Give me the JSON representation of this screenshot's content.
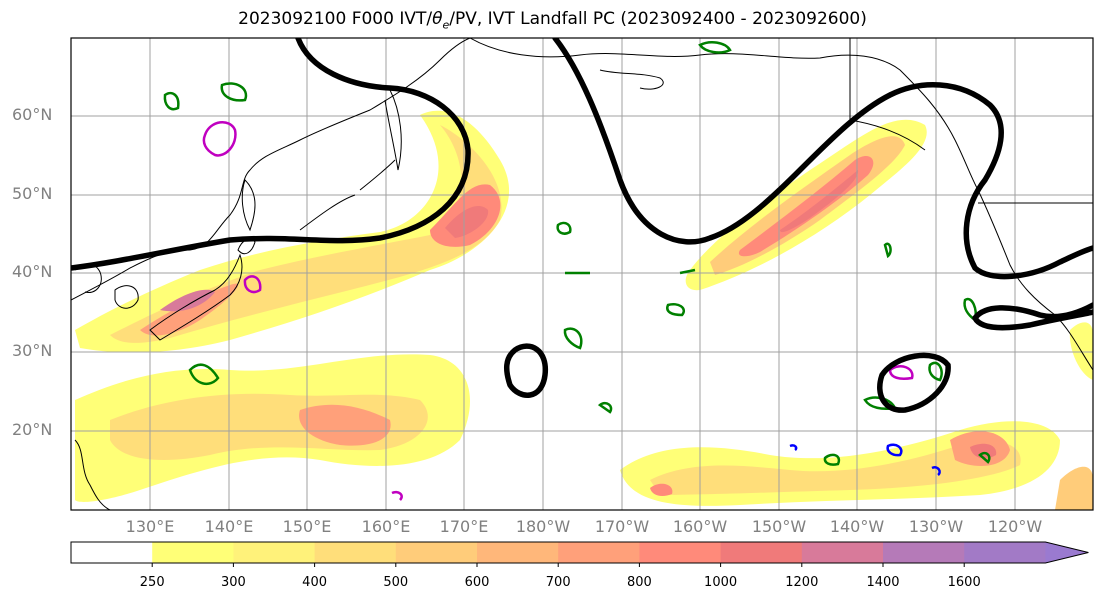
{
  "title": {
    "prefix": "2023092100 F000 IVT/",
    "theta": "θ",
    "sub": "e",
    "suffix": "/PV, IVT Landfall PC (2023092400 - 2023092600)"
  },
  "map": {
    "lon_range": [
      120,
      250
    ],
    "lat_range": [
      10,
      70
    ],
    "lat_labels": [
      "20°N",
      "30°N",
      "40°N",
      "50°N",
      "60°N"
    ],
    "lon_labels": [
      "130°E",
      "140°E",
      "150°E",
      "160°E",
      "170°E",
      "180°W",
      "170°W",
      "160°W",
      "150°W",
      "140°W",
      "130°W",
      "120°W"
    ],
    "gridlines": true,
    "contour_colors": {
      "pv": "#000000",
      "theta_e": "#008000",
      "magenta": "#c000c0",
      "blue": "#0000ff"
    }
  },
  "colorbar": {
    "levels": [
      "250",
      "300",
      "400",
      "500",
      "600",
      "700",
      "800",
      "1000",
      "1200",
      "1400",
      "1600"
    ],
    "colors": [
      "#ffffff",
      "#ffff77",
      "#fff27a",
      "#ffde7a",
      "#ffcc7a",
      "#ffb77a",
      "#ffa07a",
      "#ff8a7a",
      "#f07a7a",
      "#d87a9a",
      "#b57ab8",
      "#a27ac6",
      "#9a7ad0"
    ],
    "extend": "max"
  }
}
